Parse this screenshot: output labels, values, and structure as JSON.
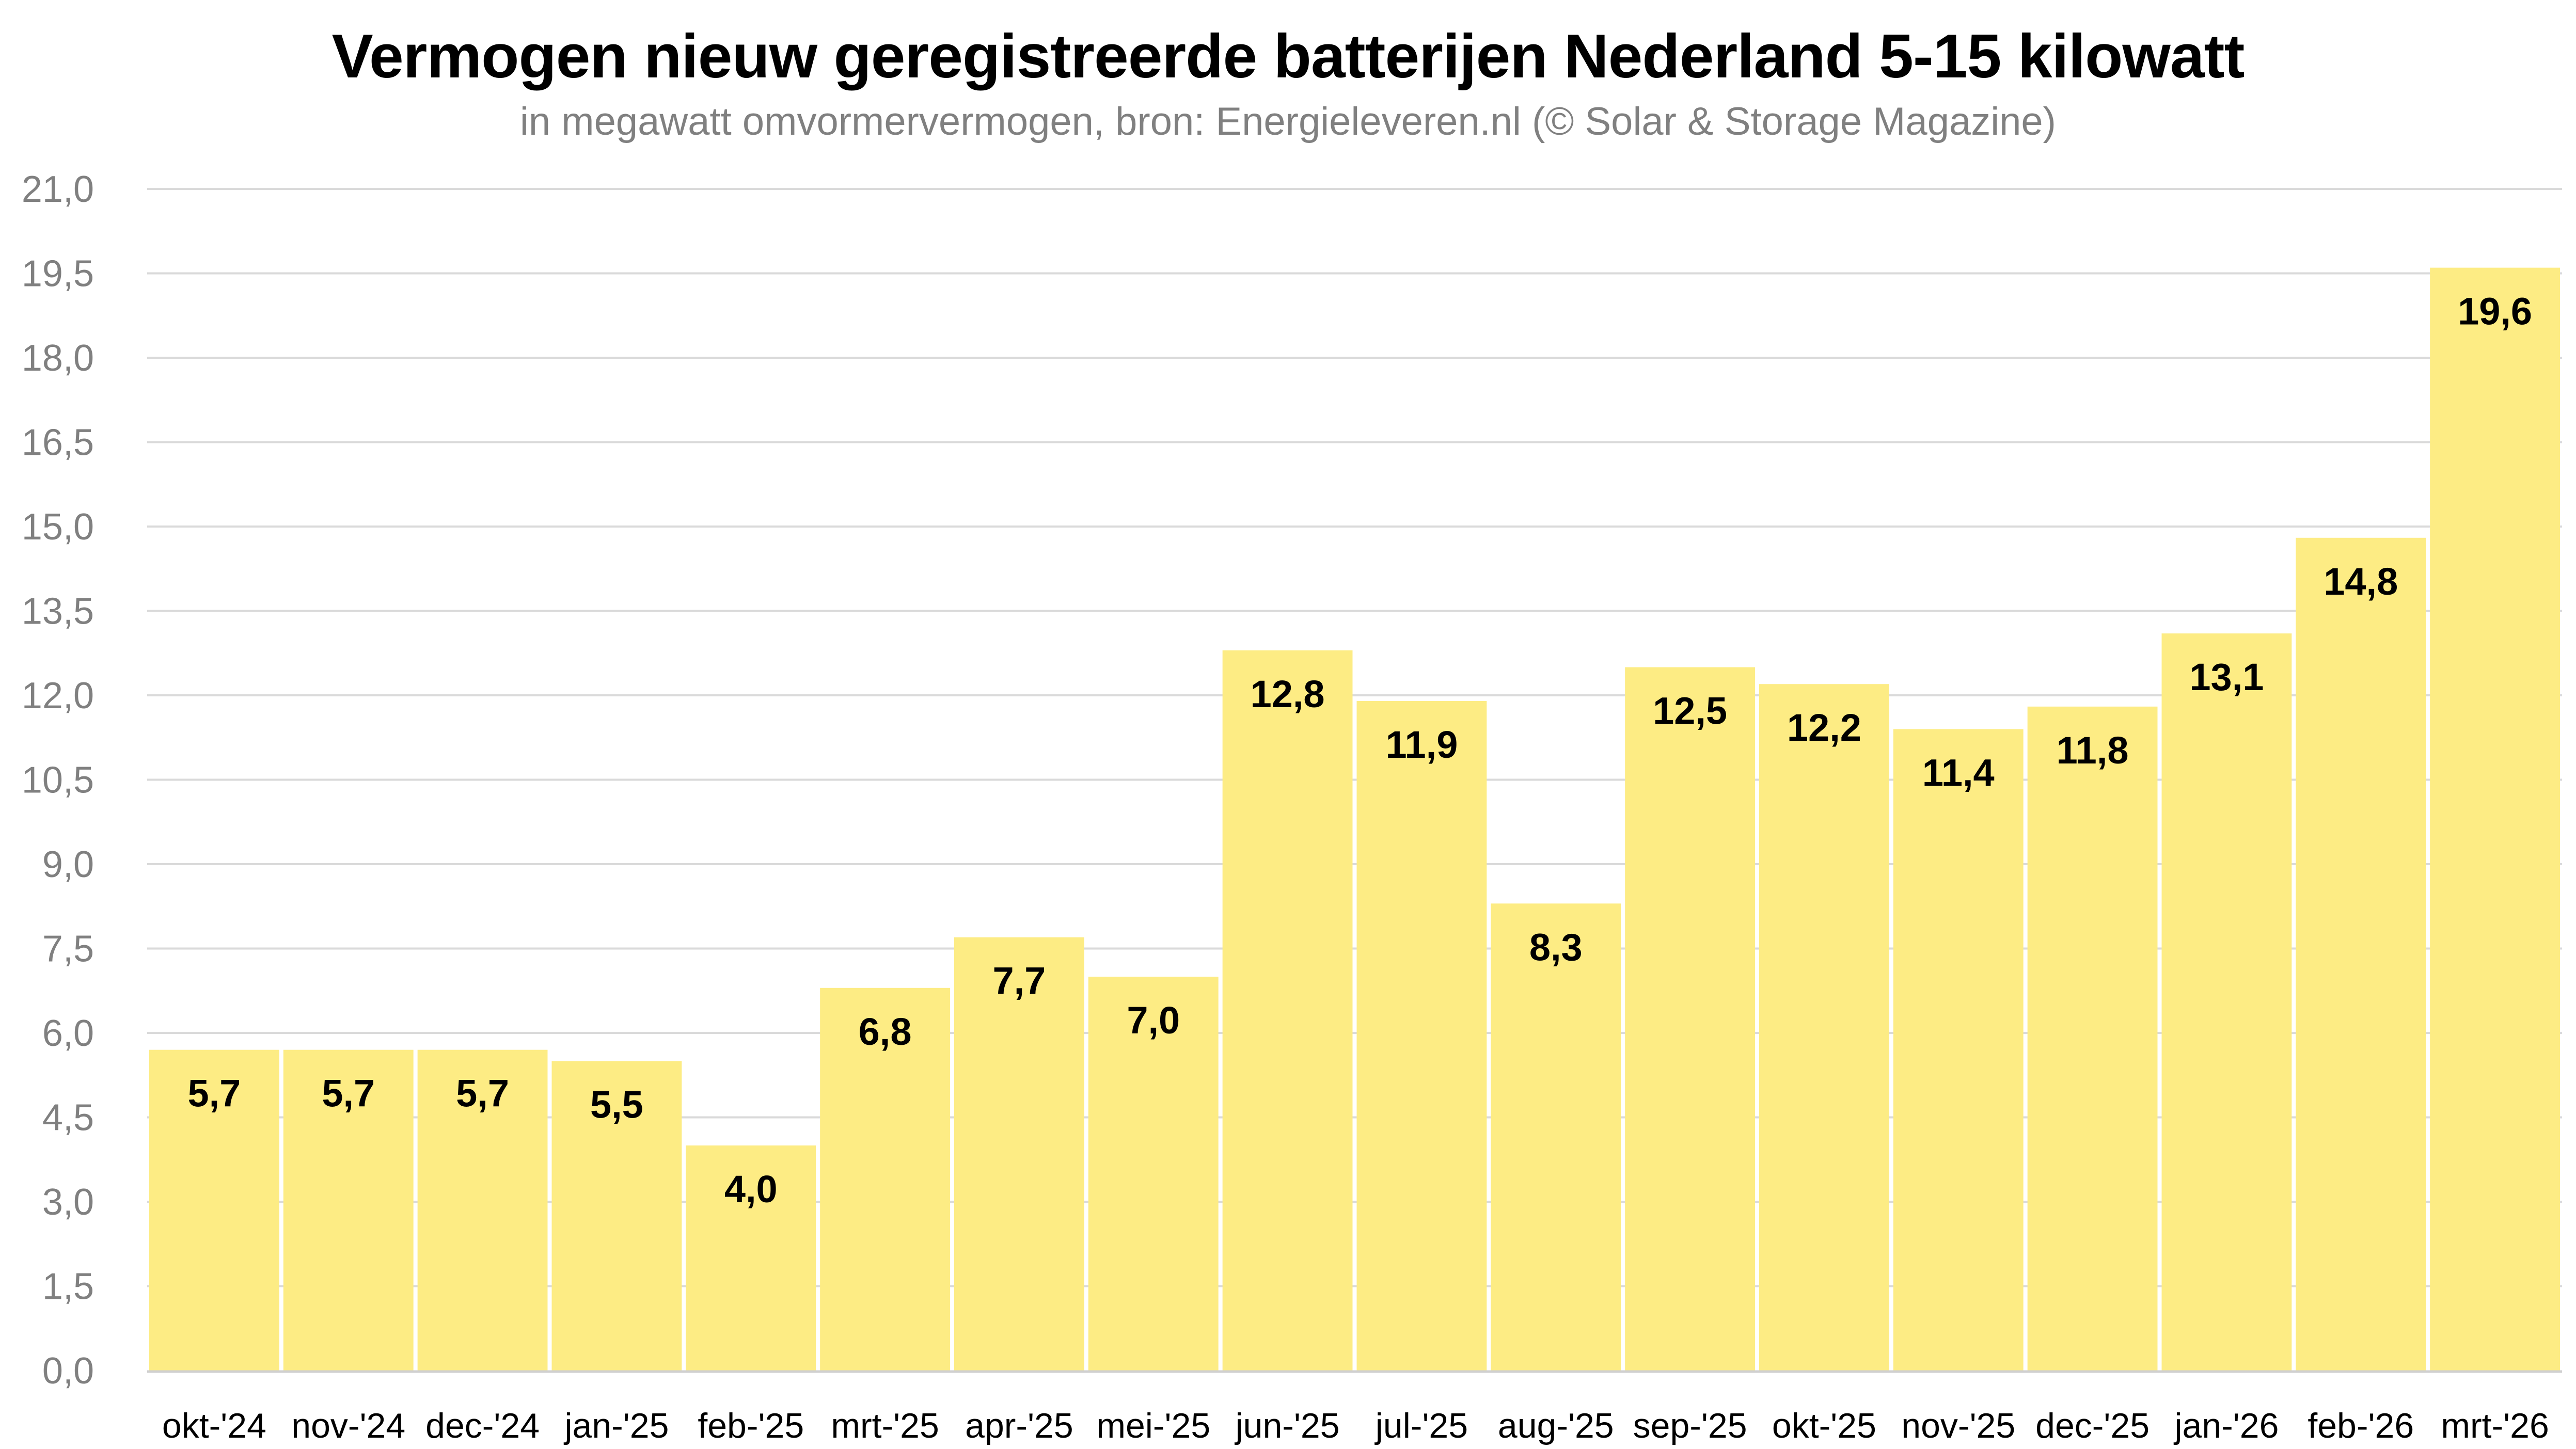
{
  "chart_data": {
    "type": "bar",
    "title": "Vermogen nieuw geregistreerde batterijen Nederland 5-15 kilowatt",
    "subtitle": "in megawatt omvormervermogen, bron: Energieleveren.nl (© Solar & Storage Magazine)",
    "xlabel": "",
    "ylabel": "",
    "categories": [
      "okt-'24",
      "nov-'24",
      "dec-'24",
      "jan-'25",
      "feb-'25",
      "mrt-'25",
      "apr-'25",
      "mei-'25",
      "jun-'25",
      "jul-'25",
      "aug-'25",
      "sep-'25",
      "okt-'25",
      "nov-'25",
      "dec-'25",
      "jan-'26",
      "feb-'26",
      "mrt-'26"
    ],
    "values": [
      5.7,
      5.7,
      5.7,
      5.5,
      4.0,
      6.8,
      7.7,
      7.0,
      12.8,
      11.9,
      8.3,
      12.5,
      12.2,
      11.4,
      11.8,
      13.1,
      14.8,
      19.6
    ],
    "value_labels": [
      "5,7",
      "5,7",
      "5,7",
      "5,5",
      "4,0",
      "6,8",
      "7,7",
      "7,0",
      "12,8",
      "11,9",
      "8,3",
      "12,5",
      "12,2",
      "11,4",
      "11,8",
      "13,1",
      "14,8",
      "19,6"
    ],
    "ylim": [
      0,
      21
    ],
    "yticks": [
      0,
      1.5,
      3,
      4.5,
      6,
      7.5,
      9,
      10.5,
      12,
      13.5,
      15,
      16.5,
      18,
      19.5,
      21
    ],
    "ytick_labels": [
      "0,0",
      "1,5",
      "3,0",
      "4,5",
      "6,0",
      "7,5",
      "9,0",
      "10,5",
      "12,0",
      "13,5",
      "15,0",
      "16,5",
      "18,0",
      "19,5",
      "21,0"
    ],
    "grid": true,
    "legend": "none",
    "colors": {
      "bar": "#FDEC84",
      "grid": "#DADADA",
      "baseline": "#D0D0D0",
      "tick_text": "#808080",
      "label_text": "#000000"
    }
  }
}
